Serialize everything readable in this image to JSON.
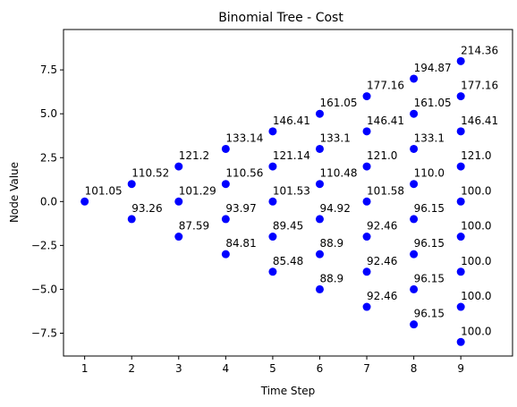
{
  "chart_data": {
    "type": "scatter",
    "title": "Binomial Tree - Cost",
    "xlabel": "Time Step",
    "ylabel": "Node Value",
    "xlim": [
      0.55,
      10.1
    ],
    "ylim": [
      -8.8,
      9.8
    ],
    "x_ticks": [
      1,
      2,
      3,
      4,
      5,
      6,
      7,
      8,
      9
    ],
    "y_ticks": [
      -7.5,
      -5.0,
      -2.5,
      0.0,
      2.5,
      5.0,
      7.5
    ],
    "y_tick_labels": [
      "−7.5",
      "−5.0",
      "−2.5",
      "0.0",
      "2.5",
      "5.0",
      "7.5"
    ],
    "marker_color": "#0000ff",
    "grid": false,
    "points": [
      {
        "x": 1,
        "y": 0,
        "label": "101.05"
      },
      {
        "x": 2,
        "y": 1,
        "label": "110.52"
      },
      {
        "x": 2,
        "y": -1,
        "label": "93.26"
      },
      {
        "x": 3,
        "y": 2,
        "label": "121.2"
      },
      {
        "x": 3,
        "y": 0,
        "label": "101.29"
      },
      {
        "x": 3,
        "y": -2,
        "label": "87.59"
      },
      {
        "x": 4,
        "y": 3,
        "label": "133.14"
      },
      {
        "x": 4,
        "y": 1,
        "label": "110.56"
      },
      {
        "x": 4,
        "y": -1,
        "label": "93.97"
      },
      {
        "x": 4,
        "y": -3,
        "label": "84.81"
      },
      {
        "x": 5,
        "y": 4,
        "label": "146.41"
      },
      {
        "x": 5,
        "y": 2,
        "label": "121.14"
      },
      {
        "x": 5,
        "y": 0,
        "label": "101.53"
      },
      {
        "x": 5,
        "y": -2,
        "label": "89.45"
      },
      {
        "x": 5,
        "y": -4,
        "label": "85.48"
      },
      {
        "x": 6,
        "y": 5,
        "label": "161.05"
      },
      {
        "x": 6,
        "y": 3,
        "label": "133.1"
      },
      {
        "x": 6,
        "y": 1,
        "label": "110.48"
      },
      {
        "x": 6,
        "y": -1,
        "label": "94.92"
      },
      {
        "x": 6,
        "y": -3,
        "label": "88.9"
      },
      {
        "x": 6,
        "y": -5,
        "label": "88.9"
      },
      {
        "x": 7,
        "y": 6,
        "label": "177.16"
      },
      {
        "x": 7,
        "y": 4,
        "label": "146.41"
      },
      {
        "x": 7,
        "y": 2,
        "label": "121.0"
      },
      {
        "x": 7,
        "y": 0,
        "label": "101.58"
      },
      {
        "x": 7,
        "y": -2,
        "label": "92.46"
      },
      {
        "x": 7,
        "y": -4,
        "label": "92.46"
      },
      {
        "x": 7,
        "y": -6,
        "label": "92.46"
      },
      {
        "x": 8,
        "y": 7,
        "label": "194.87"
      },
      {
        "x": 8,
        "y": 5,
        "label": "161.05"
      },
      {
        "x": 8,
        "y": 3,
        "label": "133.1"
      },
      {
        "x": 8,
        "y": 1,
        "label": "110.0"
      },
      {
        "x": 8,
        "y": -1,
        "label": "96.15"
      },
      {
        "x": 8,
        "y": -3,
        "label": "96.15"
      },
      {
        "x": 8,
        "y": -5,
        "label": "96.15"
      },
      {
        "x": 8,
        "y": -7,
        "label": "96.15"
      },
      {
        "x": 9,
        "y": 8,
        "label": "214.36"
      },
      {
        "x": 9,
        "y": 6,
        "label": "177.16"
      },
      {
        "x": 9,
        "y": 4,
        "label": "146.41"
      },
      {
        "x": 9,
        "y": 2,
        "label": "121.0"
      },
      {
        "x": 9,
        "y": 0,
        "label": "100.0"
      },
      {
        "x": 9,
        "y": -2,
        "label": "100.0"
      },
      {
        "x": 9,
        "y": -4,
        "label": "100.0"
      },
      {
        "x": 9,
        "y": -6,
        "label": "100.0"
      },
      {
        "x": 9,
        "y": -8,
        "label": "100.0"
      }
    ]
  }
}
